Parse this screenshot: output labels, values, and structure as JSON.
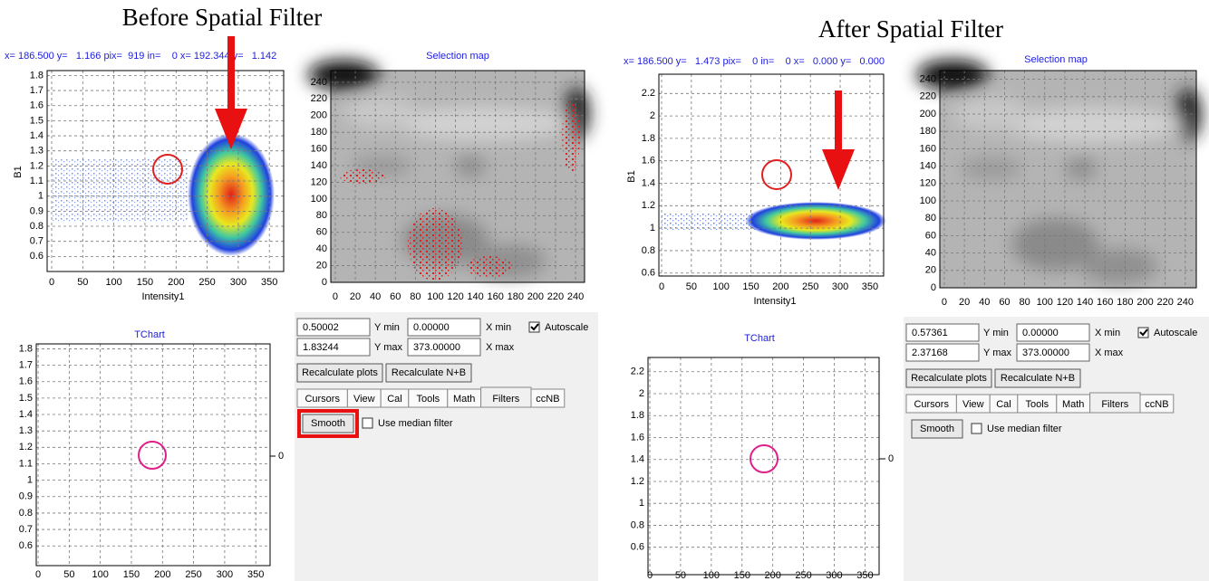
{
  "panels": [
    {
      "title": "Before Spatial Filter",
      "status": "x= 186.500 y=   1.166 pix=  919 in=    0 x= 192.344 y=   1.142",
      "scatter": {
        "y_label": "B1",
        "x_label": "Intensity1",
        "xlim": [
          0,
          373
        ],
        "ylim": [
          0.50002,
          1.83244
        ],
        "xticks": [
          0,
          50,
          100,
          150,
          200,
          250,
          300,
          350
        ],
        "yticks": [
          0.6,
          0.7,
          0.8,
          0.9,
          1,
          1.1,
          1.2,
          1.3,
          1.4,
          1.5,
          1.6,
          1.7,
          1.8
        ]
      },
      "map": {
        "title": "Selection map",
        "xlim": [
          -4.5,
          249
        ],
        "ylim": [
          0,
          254
        ],
        "xticks": [
          0,
          20,
          40,
          60,
          80,
          100,
          120,
          140,
          160,
          180,
          200,
          220,
          240
        ],
        "yticks": [
          0,
          20,
          40,
          60,
          80,
          100,
          120,
          140,
          160,
          180,
          200,
          220,
          240
        ]
      },
      "tchart": {
        "title": "TChart",
        "side_label": "0",
        "xlim": [
          -3,
          373
        ],
        "ylim": [
          0.48,
          1.83
        ],
        "xticks": [
          0,
          50,
          100,
          150,
          200,
          250,
          300,
          350
        ],
        "yticks": [
          0.6,
          0.7,
          0.8,
          0.9,
          1,
          1.1,
          1.2,
          1.3,
          1.4,
          1.5,
          1.6,
          1.7,
          1.8
        ]
      },
      "controls": {
        "y_min": "0.50002",
        "y_min_label": "Y min",
        "x_min": "0.00000",
        "x_min_label": "X min",
        "autoscale": "Autoscale",
        "y_max": "1.83244",
        "y_max_label": "Y max",
        "x_max": "373.00000",
        "x_max_label": "X max",
        "buttons": [
          "Recalculate plots",
          "Recalculate N+B"
        ],
        "tabs": [
          "Cursors",
          "View",
          "Cal",
          "Tools",
          "Math",
          "Filters",
          "ccNB"
        ],
        "smooth": "Smooth",
        "median": "Use median filter"
      }
    },
    {
      "title": "After Spatial Filter",
      "status": "x= 186.500 y=   1.473 pix=    0 in=    0 x=   0.000 y=   0.000",
      "scatter": {
        "y_label": "B1",
        "x_label": "Intensity1",
        "xlim": [
          0,
          373
        ],
        "ylim": [
          0.57361,
          2.37168
        ],
        "xticks": [
          0,
          50,
          100,
          150,
          200,
          250,
          300,
          350
        ],
        "yticks": [
          0.6,
          0.8,
          1,
          1.2,
          1.4,
          1.6,
          1.8,
          2,
          2.2
        ]
      },
      "map": {
        "title": "Selection map",
        "xlim": [
          -4.5,
          251
        ],
        "ylim": [
          0,
          250
        ],
        "xticks": [
          0,
          20,
          40,
          60,
          80,
          100,
          120,
          140,
          160,
          180,
          200,
          220,
          240
        ],
        "yticks": [
          0,
          20,
          40,
          60,
          80,
          100,
          120,
          140,
          160,
          180,
          200,
          220,
          240
        ]
      },
      "tchart": {
        "title": "TChart",
        "side_label": "0",
        "xlim": [
          -3,
          373
        ],
        "ylim": [
          0.35,
          2.33
        ],
        "xticks": [
          0,
          50,
          100,
          150,
          200,
          250,
          300,
          350
        ],
        "yticks": [
          0.6,
          0.8,
          1,
          1.2,
          1.4,
          1.6,
          1.8,
          2,
          2.2
        ]
      },
      "controls": {
        "y_min": "0.57361",
        "y_min_label": "Y min",
        "x_min": "0.00000",
        "x_min_label": "X min",
        "autoscale": "Autoscale",
        "y_max": "2.37168",
        "y_max_label": "Y max",
        "x_max": "373.00000",
        "x_max_label": "X max",
        "buttons": [
          "Recalculate plots",
          "Recalculate N+B"
        ],
        "tabs": [
          "Cursors",
          "View",
          "Cal",
          "Tools",
          "Math",
          "Filters",
          "ccNB"
        ],
        "smooth": "Smooth",
        "median": "Use median filter"
      }
    }
  ]
}
